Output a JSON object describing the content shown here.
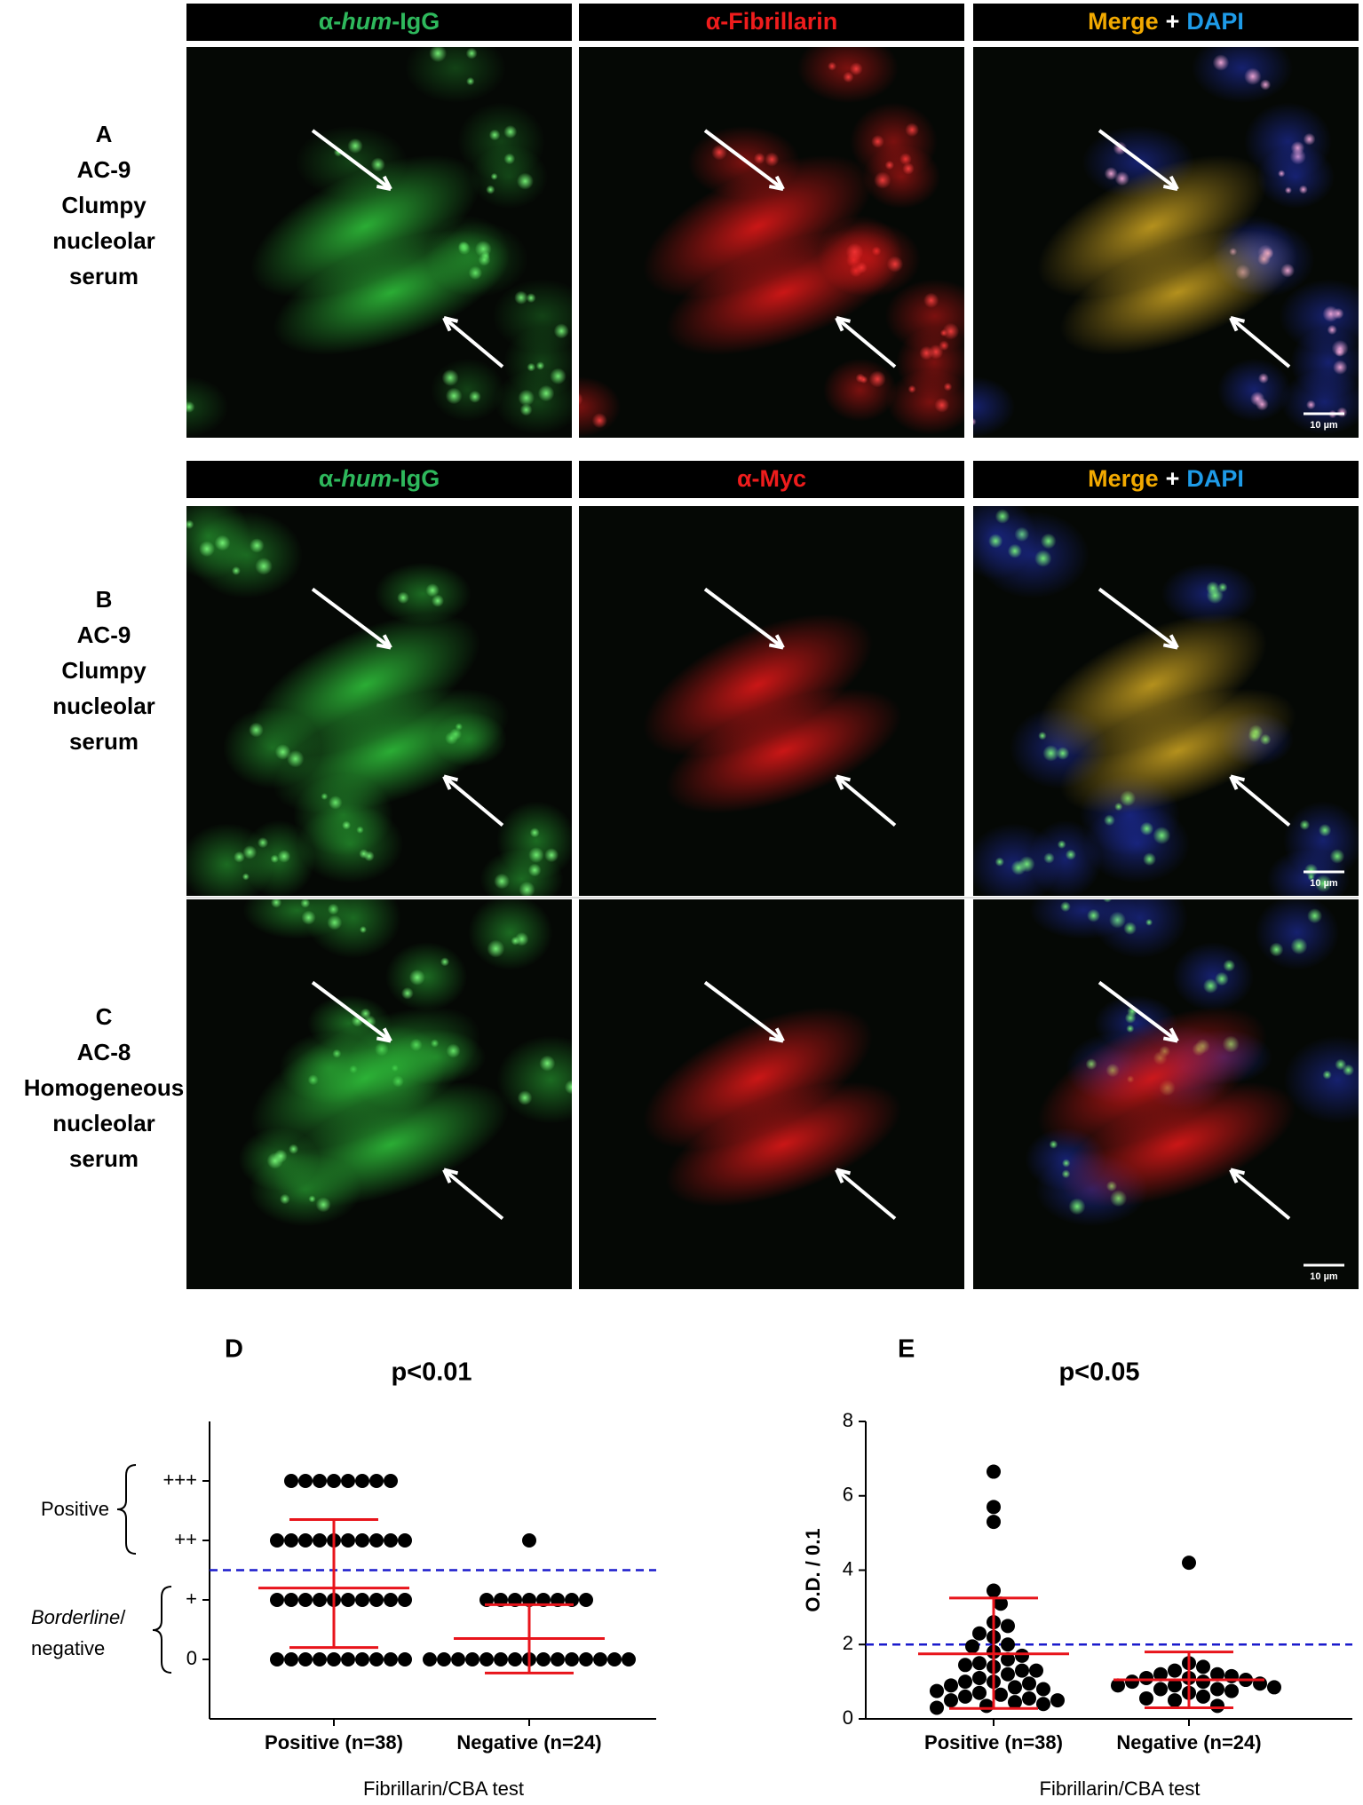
{
  "figure": {
    "header_rows": [
      [
        [
          "α-",
          "hum",
          "-IgG"
        ],
        [
          "α-Fibrillarin"
        ],
        [
          "Merge",
          "+",
          "DAPI"
        ]
      ],
      [
        [
          "α-",
          "hum",
          "-IgG"
        ],
        [
          "α-Myc"
        ],
        [
          "Merge",
          "+",
          "DAPI"
        ]
      ]
    ],
    "row_labels": [
      [
        "A",
        "AC-9",
        "Clumpy",
        "nucleolar",
        "serum"
      ],
      [
        "B",
        "AC-9",
        "Clumpy",
        "nucleolar",
        "serum"
      ],
      [
        "C",
        "AC-8",
        "Homogeneous",
        "nucleolar",
        "serum"
      ]
    ],
    "scale_bar": "10 µm",
    "bracket_labels": [
      "Positive",
      "Borderline",
      "/",
      "negative"
    ]
  },
  "chart_data": [
    {
      "type": "dot_plot",
      "panel_label": "D",
      "title": "p<0.01",
      "x_label": "Fibrillarin/CBA test",
      "categories": [
        "Positive (n=38)",
        "Negative (n=24)"
      ],
      "groups": [
        {
          "values": [
            3,
            3,
            3,
            3,
            3,
            3,
            3,
            3,
            2,
            2,
            2,
            2,
            2,
            2,
            2,
            2,
            2,
            2,
            1,
            1,
            1,
            1,
            1,
            1,
            1,
            1,
            1,
            1,
            0,
            0,
            0,
            0,
            0,
            0,
            0,
            0,
            0,
            0
          ],
          "center": 1.2,
          "upper": 2.35,
          "lower": 0.2
        },
        {
          "values": [
            2,
            1,
            1,
            1,
            1,
            1,
            1,
            1,
            1,
            0,
            0,
            0,
            0,
            0,
            0,
            0,
            0,
            0,
            0,
            0,
            0,
            0,
            0,
            0
          ],
          "center": 0.35,
          "upper": 0.92,
          "lower": -0.23
        }
      ],
      "ylim": [
        -1,
        4
      ],
      "yticks": [
        0,
        {
          "value": 1,
          "label": "+"
        },
        {
          "value": 2,
          "label": "++"
        },
        {
          "value": 3,
          "label": "+++"
        }
      ],
      "threshold": 1.5,
      "color": "#000000",
      "error_color": "#e8141b",
      "threshold_color": "#1a1acc"
    },
    {
      "type": "dot_plot",
      "panel_label": "E",
      "title": "p<0.05",
      "x_label": "Fibrillarin/CBA test",
      "y_label": "O.D. / 0.1",
      "categories": [
        "Positive (n=38)",
        "Negative (n=24)"
      ],
      "groups": [
        {
          "values": [
            6.65,
            5.7,
            5.3,
            3.45,
            3.1,
            2.6,
            2.5,
            2.3,
            2.2,
            2.0,
            1.95,
            1.8,
            1.7,
            1.6,
            1.5,
            1.45,
            1.4,
            1.3,
            1.3,
            1.2,
            1.1,
            1.0,
            1.0,
            0.95,
            0.9,
            0.85,
            0.8,
            0.75,
            0.7,
            0.65,
            0.6,
            0.55,
            0.5,
            0.5,
            0.45,
            0.4,
            0.35,
            0.3
          ],
          "center": 1.75,
          "upper": 3.25,
          "lower": 0.28
        },
        {
          "values": [
            4.2,
            1.5,
            1.4,
            1.3,
            1.2,
            1.2,
            1.15,
            1.1,
            1.1,
            1.05,
            1.0,
            1.0,
            0.95,
            0.9,
            0.9,
            0.85,
            0.8,
            0.8,
            0.75,
            0.7,
            0.6,
            0.55,
            0.5,
            0.35
          ],
          "center": 1.05,
          "upper": 1.8,
          "lower": 0.3
        }
      ],
      "ylim": [
        0,
        8
      ],
      "yticks": [
        0,
        2,
        4,
        6,
        8
      ],
      "threshold": 2,
      "color": "#000000",
      "error_color": "#e8141b",
      "threshold_color": "#1a1acc"
    }
  ]
}
